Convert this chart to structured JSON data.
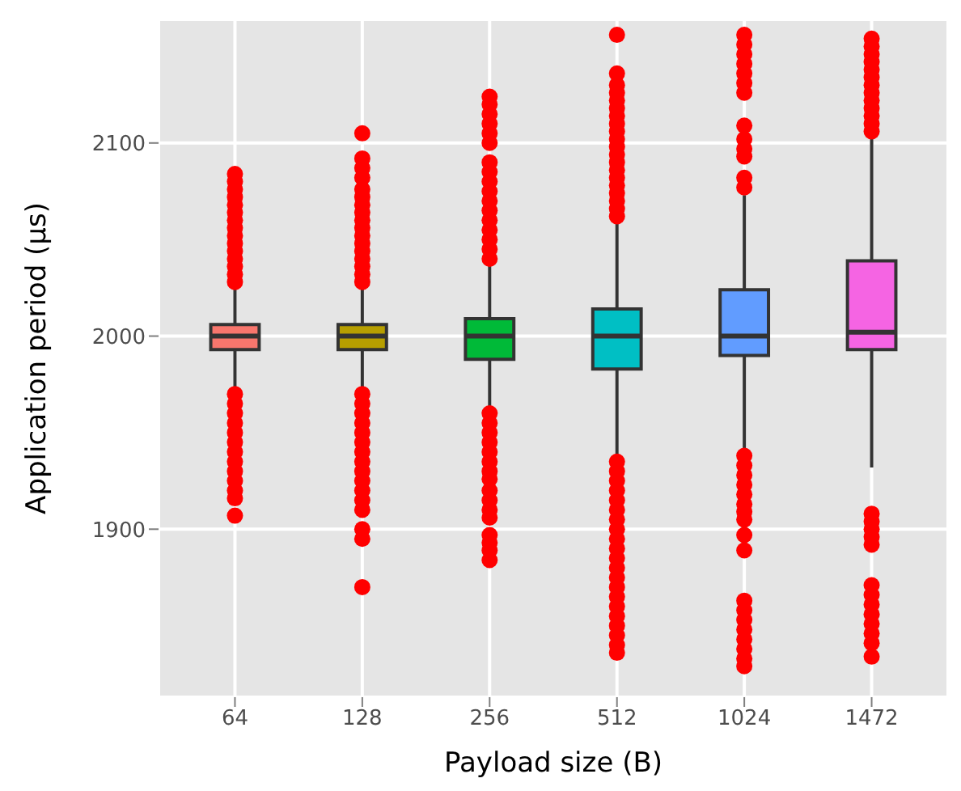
{
  "chart_data": {
    "type": "box",
    "xlabel": "Payload size (B)",
    "ylabel": "Application period (µs)",
    "categories": [
      "64",
      "128",
      "256",
      "512",
      "1024",
      "1472"
    ],
    "colors": [
      "#f8766d",
      "#b79f00",
      "#00ba38",
      "#00bfc4",
      "#619cff",
      "#f564e3"
    ],
    "ylim": [
      1813,
      2164
    ],
    "yticks": [
      1900,
      2000,
      2100
    ],
    "grid": true,
    "boxes": [
      {
        "low": 1973,
        "q1": 1993,
        "median": 2000,
        "q3": 2006,
        "high": 2026,
        "outliers": [
          2028,
          2032,
          2036,
          2040,
          2044,
          2048,
          2052,
          2056,
          2060,
          2064,
          2068,
          2072,
          2076,
          2080,
          2084,
          1970,
          1965,
          1960,
          1955,
          1950,
          1945,
          1940,
          1935,
          1930,
          1925,
          1920,
          1916,
          1907
        ]
      },
      {
        "low": 1973,
        "q1": 1993,
        "median": 2000,
        "q3": 2006,
        "high": 2026,
        "outliers": [
          2028,
          2032,
          2036,
          2040,
          2044,
          2048,
          2052,
          2056,
          2060,
          2064,
          2068,
          2072,
          2076,
          2082,
          2087,
          2092,
          2105,
          1970,
          1965,
          1960,
          1955,
          1950,
          1945,
          1940,
          1935,
          1930,
          1925,
          1920,
          1915,
          1910,
          1900,
          1895,
          1870
        ]
      },
      {
        "low": 1961,
        "q1": 1988,
        "median": 2000,
        "q3": 2009,
        "high": 2038,
        "outliers": [
          2040,
          2045,
          2050,
          2055,
          2060,
          2065,
          2070,
          2075,
          2080,
          2085,
          2090,
          2100,
          2105,
          2110,
          2115,
          2120,
          2124,
          1960,
          1955,
          1950,
          1945,
          1940,
          1935,
          1930,
          1926,
          1920,
          1915,
          1910,
          1906,
          1897,
          1893,
          1889,
          1884
        ]
      },
      {
        "low": 1937,
        "q1": 1983,
        "median": 2000,
        "q3": 2014,
        "high": 2060,
        "outliers": [
          2062,
          2066,
          2070,
          2074,
          2078,
          2082,
          2086,
          2090,
          2094,
          2098,
          2102,
          2106,
          2110,
          2114,
          2118,
          2122,
          2126,
          2130,
          2136,
          2156,
          1935,
          1930,
          1925,
          1920,
          1915,
          1910,
          1905,
          1900,
          1895,
          1890,
          1885,
          1880,
          1875,
          1870,
          1865,
          1860,
          1855,
          1850,
          1845,
          1840,
          1836
        ]
      },
      {
        "low": 1940,
        "q1": 1990,
        "median": 2000,
        "q3": 2024,
        "high": 2073,
        "outliers": [
          2077,
          2082,
          2093,
          2097,
          2102,
          2109,
          2126,
          2131,
          2136,
          2141,
          2146,
          2151,
          2156,
          1938,
          1933,
          1928,
          1923,
          1918,
          1913,
          1909,
          1905,
          1897,
          1889,
          1863,
          1858,
          1853,
          1848,
          1843,
          1838,
          1833,
          1829
        ]
      },
      {
        "low": 1932,
        "q1": 1993,
        "median": 2002,
        "q3": 2039,
        "high": 2104,
        "outliers": [
          2106,
          2110,
          2114,
          2118,
          2122,
          2126,
          2130,
          2134,
          2138,
          2142,
          2146,
          2150,
          2154,
          1908,
          1904,
          1900,
          1896,
          1892,
          1871,
          1866,
          1861,
          1856,
          1851,
          1846,
          1841,
          1834
        ]
      }
    ]
  }
}
